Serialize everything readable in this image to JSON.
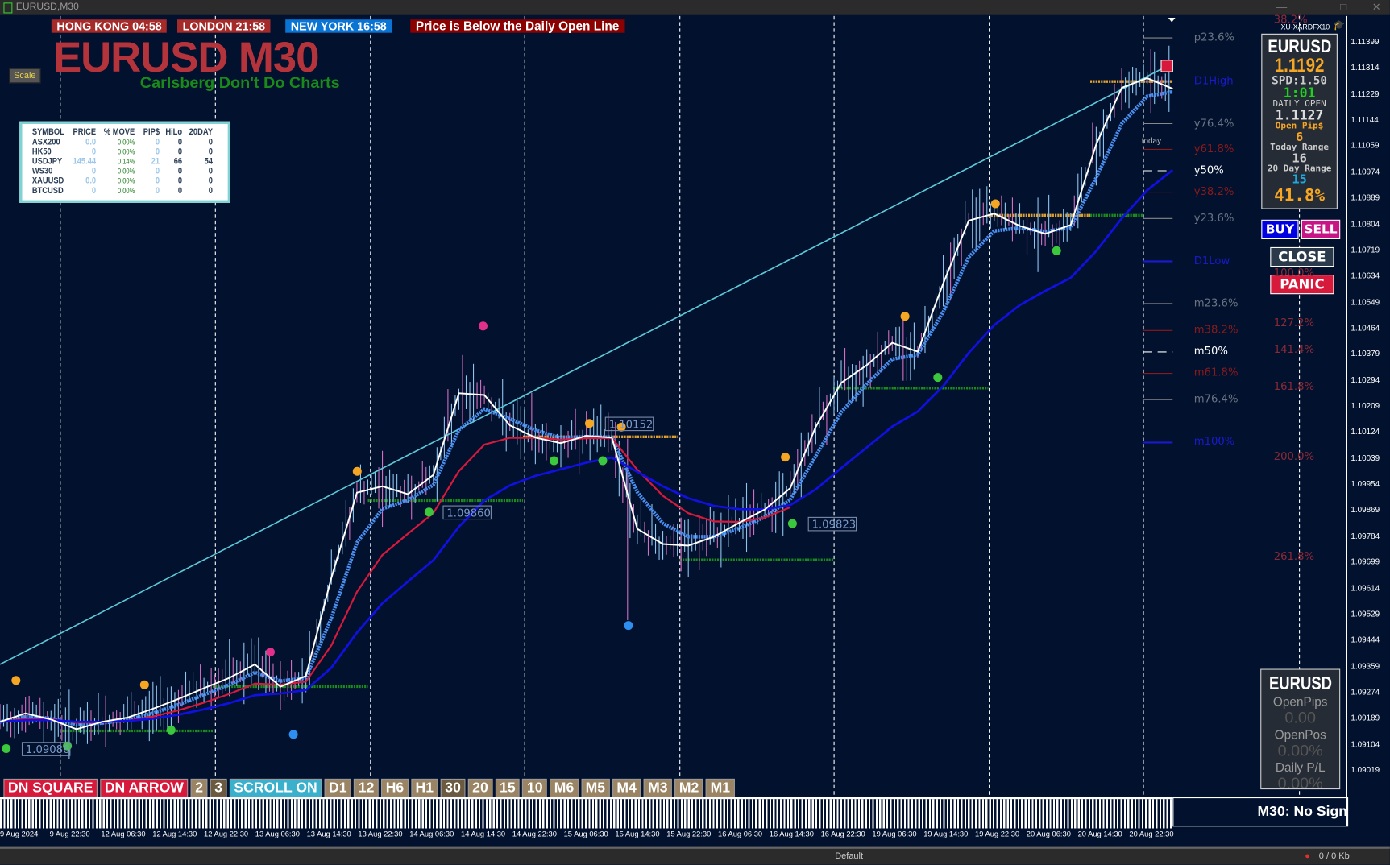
{
  "window": {
    "title": "EURUSD,M30"
  },
  "header": {
    "sessions": [
      {
        "label": "HONG KONG  04:58",
        "color": "#a52a2a"
      },
      {
        "label": "LONDON  21:58",
        "color": "#a52a2a"
      },
      {
        "label": "NEW YORK  16:58",
        "color": "#0a74d4"
      }
    ],
    "alert": "Price is Below the Daily Open Line",
    "title": "EURUSD M30",
    "subtitle": "Carlsberg Don't Do Charts",
    "scale_button": "Scale"
  },
  "market_table": {
    "columns": [
      "SYMBOL",
      "PRICE",
      "% MOVE",
      "PIP$",
      "HiLo",
      "20DAY"
    ],
    "rows": [
      [
        "ASX200",
        "0.0",
        "0.00%",
        "0",
        "0",
        "0"
      ],
      [
        "HK50",
        "0",
        "0.00%",
        "0",
        "0",
        "0"
      ],
      [
        "USDJPY",
        "145.44",
        "0.14%",
        "21",
        "66",
        "54"
      ],
      [
        "WS30",
        "0",
        "0.00%",
        "0",
        "0",
        "0"
      ],
      [
        "XAUUSD",
        "0.0",
        "0.00%",
        "0",
        "0",
        "0"
      ],
      [
        "BTCUSD",
        "0",
        "0.00%",
        "0",
        "0",
        "0"
      ]
    ]
  },
  "info_panel": {
    "broker": "XU-XARDFX10",
    "symbol": "EURUSD",
    "price": "1.1192",
    "spread": "SPD:1.50",
    "timer": "1:01",
    "daily_open_label": "DAILY OPEN",
    "daily_open": "1.1127",
    "open_pips_label": "Open Pip$",
    "open_pips": "6",
    "today_range_label": "Today Range",
    "today_range": "16",
    "day20_range_label": "20 Day Range",
    "day20_range": "15",
    "percent": "41.8%"
  },
  "trade_buttons": {
    "buy": "BUY",
    "sell": "SELL",
    "close": "CLOSE",
    "panic": "PANIC"
  },
  "position_panel": {
    "symbol": "EURUSD",
    "open_pips_label": "OpenPips",
    "open_pips": "0.00",
    "open_pos_label": "OpenPos",
    "open_pos": "0.00%",
    "daily_pl_label": "Daily P/L",
    "daily_pl": "0.00%"
  },
  "fib_levels": [
    {
      "label": "p23.6%",
      "price": 1.11414,
      "color": "#6a7380"
    },
    {
      "label": "D1High",
      "price": 1.11272,
      "color": "#1a1acc"
    },
    {
      "label": "y76.4%",
      "price": 1.11134,
      "color": "#6a7380"
    },
    {
      "label": "y61.8%",
      "price": 1.1105,
      "color": "#8b1a1a"
    },
    {
      "label": "y50%",
      "price": 1.1098,
      "color": "#ffffff"
    },
    {
      "label": "y38.2%",
      "price": 1.1091,
      "color": "#8b1a1a"
    },
    {
      "label": "y23.6%",
      "price": 1.10824,
      "color": "#6a7380"
    },
    {
      "label": "D1Low",
      "price": 1.10684,
      "color": "#1a1acc"
    },
    {
      "label": "m23.6%",
      "price": 1.10546,
      "color": "#6a7380"
    },
    {
      "label": "m38.2%",
      "price": 1.10458,
      "color": "#8b1a1a"
    },
    {
      "label": "m50%",
      "price": 1.10388,
      "color": "#ffffff"
    },
    {
      "label": "m61.8%",
      "price": 1.10318,
      "color": "#8b1a1a"
    },
    {
      "label": "m76.4%",
      "price": 1.10232,
      "color": "#6a7380"
    },
    {
      "label": "m100%",
      "price": 1.10092,
      "color": "#1a1acc"
    }
  ],
  "ext_levels": [
    {
      "label": "38.2%",
      "price": 1.11471
    },
    {
      "label": "100.0%",
      "price": 1.10643
    },
    {
      "label": "127.2%",
      "price": 1.1048
    },
    {
      "label": "141.4%",
      "price": 1.10395
    },
    {
      "label": "161.8%",
      "price": 1.10273
    },
    {
      "label": "200.0%",
      "price": 1.10043
    },
    {
      "label": "261.8%",
      "price": 1.09716
    }
  ],
  "today_label": "today",
  "price_axis": [
    "1.11399",
    "1.11314",
    "1.11229",
    "1.11144",
    "1.11059",
    "1.10974",
    "1.10889",
    "1.10804",
    "1.10719",
    "1.10634",
    "1.10549",
    "1.10464",
    "1.10379",
    "1.10294",
    "1.10209",
    "1.10124",
    "1.10039",
    "1.09954",
    "1.09869",
    "1.09784",
    "1.09699",
    "1.09614",
    "1.09529",
    "1.09444",
    "1.09359",
    "1.09274",
    "1.09189",
    "1.09104",
    "1.09019"
  ],
  "time_axis": [
    "9 Aug 2024",
    "9 Aug 22:30",
    "12 Aug 06:30",
    "12 Aug 14:30",
    "12 Aug 22:30",
    "13 Aug 06:30",
    "13 Aug 14:30",
    "13 Aug 22:30",
    "14 Aug 06:30",
    "14 Aug 14:30",
    "14 Aug 22:30",
    "15 Aug 06:30",
    "15 Aug 14:30",
    "15 Aug 22:30",
    "16 Aug 06:30",
    "16 Aug 14:30",
    "16 Aug 22:30",
    "19 Aug 06:30",
    "19 Aug 14:30",
    "19 Aug 22:30",
    "20 Aug 06:30",
    "20 Aug 14:30",
    "20 Aug 22:30"
  ],
  "price_series": [
    1.09179,
    1.09207,
    1.09187,
    1.09155,
    1.09179,
    1.09193,
    1.09222,
    1.09254,
    1.09289,
    1.09323,
    1.09367,
    1.09294,
    1.09329,
    1.0965,
    1.09928,
    1.09949,
    1.09923,
    1.09986,
    1.10253,
    1.10247,
    1.10148,
    1.10108,
    1.1009,
    1.10114,
    1.10108,
    1.0981,
    1.0976,
    1.09755,
    1.09784,
    1.0983,
    1.09873,
    1.09943,
    1.10143,
    1.10287,
    1.10345,
    1.10418,
    1.10389,
    1.10612,
    1.10817,
    1.1084,
    1.108,
    1.10774,
    1.10803,
    1.11066,
    1.11251,
    1.11283,
    1.11248
  ],
  "trendline": {
    "from": 1.09367,
    "to": 1.11312
  },
  "price_tags": [
    "1.09086",
    "1.09860",
    "1.10152",
    "1.09823"
  ],
  "toolbar": [
    {
      "label": "DN SQUARE",
      "color": "#d7193c"
    },
    {
      "label": "DN ARROW",
      "color": "#d7193c"
    },
    {
      "label": "2",
      "color": "#9a8463"
    },
    {
      "label": "3",
      "color": "#6b5a40"
    },
    {
      "label": "SCROLL ON",
      "color": "#3ab0cc"
    },
    {
      "label": "D1",
      "color": "#9a8463"
    },
    {
      "label": "12",
      "color": "#9a8463"
    },
    {
      "label": "H6",
      "color": "#9a8463"
    },
    {
      "label": "H1",
      "color": "#9a8463"
    },
    {
      "label": "30",
      "color": "#6b5a40"
    },
    {
      "label": "20",
      "color": "#9a8463"
    },
    {
      "label": "15",
      "color": "#9a8463"
    },
    {
      "label": "10",
      "color": "#9a8463"
    },
    {
      "label": "M6",
      "color": "#9a8463"
    },
    {
      "label": "M5",
      "color": "#9a8463"
    },
    {
      "label": "M4",
      "color": "#9a8463"
    },
    {
      "label": "M3",
      "color": "#9a8463"
    },
    {
      "label": "M2",
      "color": "#9a8463"
    },
    {
      "label": "M1",
      "color": "#9a8463"
    }
  ],
  "signal_status": "M30: No Sign",
  "statusbar": {
    "profile": "Default",
    "traffic": "0 / 0 Kb"
  }
}
